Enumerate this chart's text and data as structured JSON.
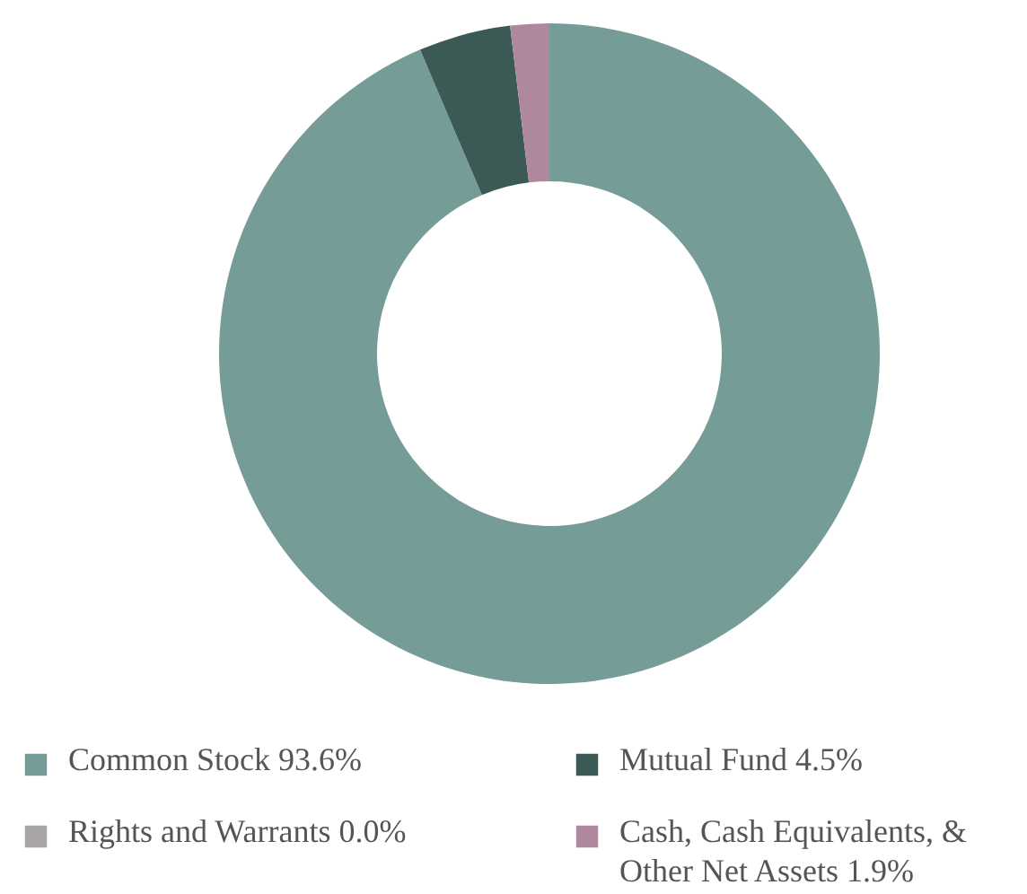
{
  "chart_data": {
    "type": "donut",
    "categories": [
      "Common Stock",
      "Mutual Fund",
      "Rights and Warrants",
      "Cash, Cash Equivalents, & Other Net Assets"
    ],
    "values": [
      93.6,
      4.5,
      0.0,
      1.9
    ],
    "value_labels": [
      "93.6%",
      "4.5%",
      "0.0%",
      "1.9%"
    ],
    "colors": [
      "#769c98",
      "#3c5a55",
      "#a8a4a6",
      "#b0889e"
    ],
    "legend": "bottom"
  }
}
